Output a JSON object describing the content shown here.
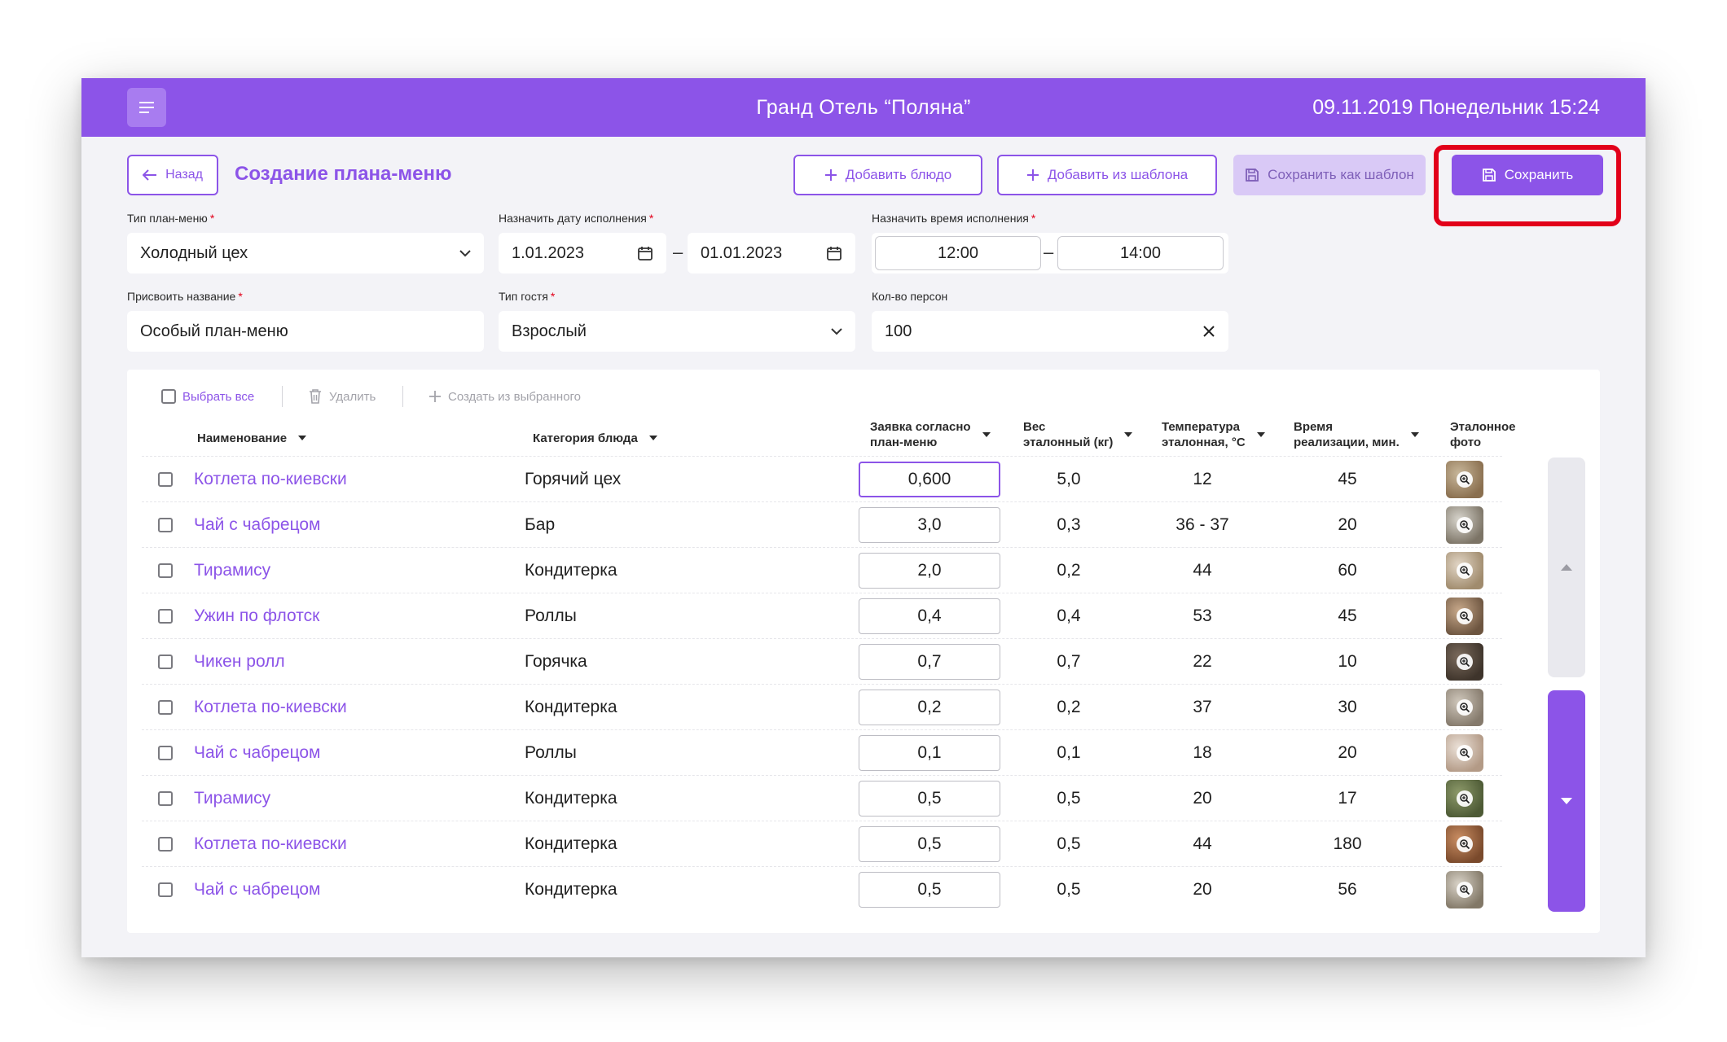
{
  "header": {
    "hotel_title": "Гранд Отель “Поляна”",
    "datetime": "09.11.2019 Понедельник 15:24"
  },
  "toolbar": {
    "back_label": "Назад",
    "page_title": "Создание плана-меню",
    "add_dish_label": "Добавить блюдо",
    "add_from_template_label": "Добавить из шаблона",
    "save_as_template_label": "Сохранить как шаблон",
    "save_label": "Сохранить"
  },
  "form": {
    "menu_type": {
      "label": "Тип план-меню",
      "value": "Холодный цех"
    },
    "date": {
      "label": "Назначить дату исполнения",
      "from": "1.01.2023",
      "to": "01.01.2023"
    },
    "time": {
      "label": "Назначить время исполнения",
      "from": "12:00",
      "to": "14:00"
    },
    "name": {
      "label": "Присвоить название",
      "value": "Особый план-меню"
    },
    "guest_type": {
      "label": "Тип гостя",
      "value": "Взрослый"
    },
    "persons": {
      "label": "Кол-во персон",
      "value": "100"
    }
  },
  "table_actions": {
    "select_all": "Выбрать все",
    "delete": "Удалить",
    "create_from_selected": "Создать из выбранного"
  },
  "columns": {
    "name": "Наименование",
    "category": "Категория блюда",
    "qty_line1": "Заявка согласно",
    "qty_line2": "план-меню",
    "weight_line1": "Вес",
    "weight_line2": "эталонный (кг)",
    "temp_line1": "Температура",
    "temp_line2": "эталонная, °С",
    "time_line1": "Время",
    "time_line2": "реализации, мин.",
    "photo_line1": "Эталонное",
    "photo_line2": "фото"
  },
  "rows": [
    {
      "name": "Котлета по-киевски",
      "category": "Горячий цех",
      "qty": "0,600",
      "weight": "5,0",
      "temp": "12",
      "time": "45"
    },
    {
      "name": "Чай с чабрецом",
      "category": "Бар",
      "qty": "3,0",
      "weight": "0,3",
      "temp": "36 - 37",
      "time": "20"
    },
    {
      "name": "Тирамису",
      "category": "Кондитерка",
      "qty": "2,0",
      "weight": "0,2",
      "temp": "44",
      "time": "60"
    },
    {
      "name": "Ужин по флотск",
      "category": "Роллы",
      "qty": "0,4",
      "weight": "0,4",
      "temp": "53",
      "time": "45"
    },
    {
      "name": "Чикен ролл",
      "category": "Горячка",
      "qty": "0,7",
      "weight": "0,7",
      "temp": "22",
      "time": "10"
    },
    {
      "name": "Котлета по-киевски",
      "category": "Кондитерка",
      "qty": "0,2",
      "weight": "0,2",
      "temp": "37",
      "time": "30"
    },
    {
      "name": "Чай с чабрецом",
      "category": "Роллы",
      "qty": "0,1",
      "weight": "0,1",
      "temp": "18",
      "time": "20"
    },
    {
      "name": "Тирамису",
      "category": "Кондитерка",
      "qty": "0,5",
      "weight": "0,5",
      "temp": "20",
      "time": "17"
    },
    {
      "name": "Котлета по-киевски",
      "category": "Кондитерка",
      "qty": "0,5",
      "weight": "0,5",
      "temp": "44",
      "time": "180"
    },
    {
      "name": "Чай с чабрецом",
      "category": "Кондитерка",
      "qty": "0,5",
      "weight": "0,5",
      "temp": "20",
      "time": "56"
    }
  ],
  "colors": {
    "accent": "#8c54e8",
    "highlight": "#e2001a"
  }
}
